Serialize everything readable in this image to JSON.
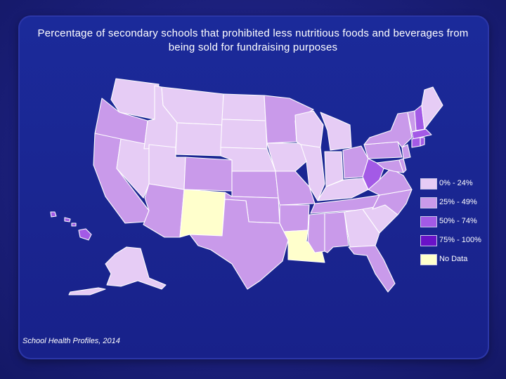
{
  "title": "Percentage of secondary schools that prohibited less nutritious foods and beverages from being sold for fundraising purposes",
  "source": "School Health Profiles, 2014",
  "legend": [
    {
      "label": "0% - 24%",
      "color": "#e6ccf5"
    },
    {
      "label": "25% - 49%",
      "color": "#c99aea"
    },
    {
      "label": "50% - 74%",
      "color": "#a35ae6"
    },
    {
      "label": "75% - 100%",
      "color": "#6a12c8"
    },
    {
      "label": "No Data",
      "color": "#ffffcc"
    }
  ],
  "state_categories": {
    "0-24": [
      "WA",
      "MT",
      "ID",
      "WY",
      "UT",
      "ND",
      "SD",
      "NE",
      "IA",
      "IL",
      "IN",
      "MI",
      "WI",
      "KY",
      "GA",
      "SC",
      "ME",
      "AK",
      "NV"
    ],
    "25-49": [
      "OR",
      "CA",
      "AZ",
      "CO",
      "KS",
      "OK",
      "TX",
      "MN",
      "MO",
      "AR",
      "MS",
      "AL",
      "TN",
      "OH",
      "PA",
      "NY",
      "VA",
      "NC",
      "FL",
      "VT",
      "NJ",
      "DE",
      "MD"
    ],
    "50-74": [
      "WV",
      "NH",
      "MA",
      "CT",
      "RI",
      "HI"
    ],
    "75-100": [],
    "no_data": [
      "NM",
      "LA"
    ]
  }
}
